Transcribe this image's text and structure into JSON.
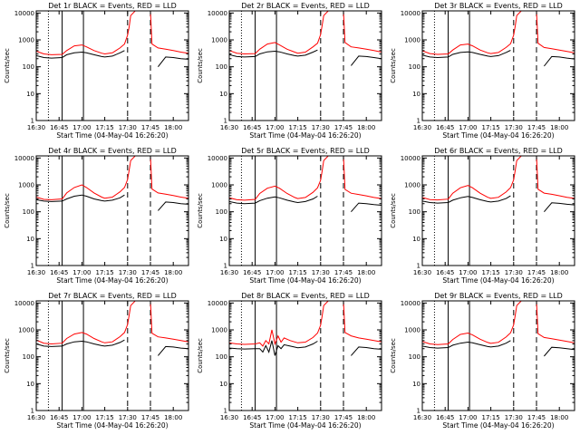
{
  "shared": {
    "x_tick_labels": [
      "16:30",
      "16:45",
      "17:00",
      "17:15",
      "17:30",
      "17:45",
      "18:00"
    ],
    "x_tick_minutes": [
      0,
      15,
      30,
      45,
      60,
      75,
      90
    ],
    "xlim_minutes": [
      0,
      100
    ],
    "xlabel": "Start Time (04-May-04 16:26:20)",
    "ylabel": "Counts/sec",
    "y_tick_labels": [
      "1",
      "10",
      "100",
      "1000",
      "10000"
    ],
    "ylim": [
      1,
      12000
    ],
    "y_scale": "log",
    "colors": {
      "events": "#000000",
      "lld": "#ff0000",
      "axes": "#000000"
    },
    "vertical_markers": [
      {
        "minute": 8,
        "style": "dotted"
      },
      {
        "minute": 17,
        "style": "solid"
      },
      {
        "minute": 31,
        "style": "solid"
      },
      {
        "minute": 60,
        "style": "dashed"
      },
      {
        "minute": 75,
        "style": "dashed"
      }
    ]
  },
  "chart_data": [
    {
      "type": "line",
      "title": "Det 1r BLACK = Events, RED = LLD",
      "y_scale": "log",
      "x_minutes": [
        0,
        5,
        10,
        17,
        20,
        25,
        30,
        33,
        38,
        43,
        45,
        50,
        55,
        58,
        60,
        61,
        62,
        65,
        70,
        75,
        76,
        80,
        85,
        90,
        95,
        100
      ],
      "series": [
        {
          "name": "LLD",
          "values": [
            380,
            300,
            280,
            290,
            400,
            600,
            650,
            550,
            400,
            320,
            300,
            330,
            500,
            700,
            1500,
            3000,
            8000,
            12000,
            12000,
            12000,
            700,
            500,
            450,
            400,
            350,
            320
          ]
        },
        {
          "name": "Events",
          "values": [
            260,
            220,
            210,
            220,
            280,
            330,
            350,
            330,
            280,
            240,
            230,
            250,
            330,
            400,
            null,
            null,
            null,
            null,
            null,
            null,
            null,
            100,
            230,
            220,
            200,
            190
          ]
        }
      ]
    },
    {
      "type": "line",
      "title": "Det 2r BLACK = Events, RED = LLD",
      "y_scale": "log",
      "x_minutes": [
        0,
        5,
        10,
        17,
        20,
        25,
        30,
        33,
        38,
        43,
        45,
        50,
        55,
        58,
        60,
        61,
        62,
        65,
        70,
        75,
        76,
        80,
        85,
        90,
        95,
        100
      ],
      "series": [
        {
          "name": "LLD",
          "values": [
            400,
            320,
            300,
            310,
            450,
            700,
            800,
            650,
            450,
            350,
            320,
            350,
            550,
            750,
            1600,
            3500,
            8000,
            12000,
            12000,
            12000,
            800,
            550,
            500,
            450,
            400,
            350
          ]
        },
        {
          "name": "Events",
          "values": [
            280,
            240,
            230,
            240,
            300,
            360,
            380,
            360,
            300,
            260,
            250,
            270,
            350,
            420,
            null,
            null,
            null,
            null,
            null,
            null,
            null,
            110,
            250,
            240,
            220,
            200
          ]
        }
      ]
    },
    {
      "type": "line",
      "title": "Det 3r BLACK = Events, RED = LLD",
      "y_scale": "log",
      "x_minutes": [
        0,
        5,
        10,
        17,
        20,
        25,
        30,
        33,
        38,
        43,
        45,
        50,
        55,
        58,
        60,
        61,
        62,
        65,
        70,
        75,
        76,
        80,
        85,
        90,
        95,
        100
      ],
      "series": [
        {
          "name": "LLD",
          "values": [
            390,
            310,
            290,
            300,
            420,
            650,
            700,
            600,
            420,
            330,
            310,
            340,
            520,
            720,
            1500,
            3200,
            8000,
            12000,
            12000,
            12000,
            750,
            520,
            470,
            420,
            370,
            330
          ]
        },
        {
          "name": "Events",
          "values": [
            270,
            230,
            220,
            230,
            290,
            340,
            360,
            340,
            290,
            250,
            240,
            260,
            340,
            410,
            null,
            null,
            null,
            null,
            null,
            null,
            null,
            105,
            240,
            230,
            210,
            195
          ]
        }
      ]
    },
    {
      "type": "line",
      "title": "Det 4r BLACK = Events, RED = LLD",
      "y_scale": "log",
      "x_minutes": [
        0,
        5,
        10,
        17,
        20,
        25,
        30,
        33,
        38,
        43,
        45,
        50,
        55,
        58,
        60,
        61,
        62,
        65,
        70,
        75,
        76,
        80,
        85,
        90,
        95,
        100
      ],
      "series": [
        {
          "name": "LLD",
          "values": [
            350,
            290,
            280,
            300,
            500,
            800,
            1000,
            800,
            500,
            350,
            320,
            350,
            550,
            800,
            1600,
            3500,
            8000,
            12000,
            12000,
            12000,
            700,
            500,
            450,
            400,
            350,
            320
          ]
        },
        {
          "name": "Events",
          "values": [
            280,
            250,
            240,
            250,
            300,
            380,
            420,
            380,
            300,
            260,
            250,
            270,
            330,
            420,
            null,
            null,
            null,
            null,
            null,
            null,
            null,
            110,
            230,
            220,
            200,
            190
          ]
        }
      ]
    },
    {
      "type": "line",
      "title": "Det 5r BLACK = Events, RED = LLD",
      "y_scale": "log",
      "x_minutes": [
        0,
        5,
        10,
        17,
        20,
        25,
        30,
        33,
        38,
        43,
        45,
        50,
        55,
        58,
        60,
        61,
        62,
        65,
        70,
        75,
        76,
        80,
        85,
        90,
        95,
        100
      ],
      "series": [
        {
          "name": "LLD",
          "values": [
            330,
            280,
            270,
            290,
            480,
            750,
            900,
            750,
            480,
            340,
            310,
            340,
            530,
            780,
            1500,
            3300,
            8000,
            12000,
            12000,
            12000,
            680,
            490,
            440,
            390,
            340,
            310
          ]
        },
        {
          "name": "Events",
          "values": [
            240,
            210,
            200,
            210,
            260,
            320,
            360,
            330,
            270,
            230,
            220,
            240,
            300,
            380,
            null,
            null,
            null,
            null,
            null,
            null,
            null,
            100,
            210,
            200,
            185,
            175
          ]
        }
      ]
    },
    {
      "type": "line",
      "title": "Det 6r BLACK = Events, RED = LLD",
      "y_scale": "log",
      "x_minutes": [
        0,
        5,
        10,
        17,
        20,
        25,
        30,
        33,
        38,
        43,
        45,
        50,
        55,
        58,
        60,
        61,
        62,
        65,
        70,
        75,
        76,
        80,
        85,
        90,
        95,
        100
      ],
      "series": [
        {
          "name": "LLD",
          "values": [
            340,
            285,
            275,
            295,
            490,
            780,
            950,
            780,
            490,
            345,
            315,
            345,
            540,
            790,
            1550,
            3400,
            8000,
            12000,
            12000,
            12000,
            690,
            495,
            445,
            395,
            345,
            315
          ]
        },
        {
          "name": "Events",
          "values": [
            250,
            220,
            210,
            220,
            270,
            330,
            370,
            340,
            280,
            240,
            230,
            250,
            310,
            390,
            null,
            null,
            null,
            null,
            null,
            null,
            null,
            100,
            215,
            205,
            190,
            180
          ]
        }
      ]
    },
    {
      "type": "line",
      "title": "Det 7r BLACK = Events, RED = LLD",
      "y_scale": "log",
      "x_minutes": [
        0,
        5,
        10,
        17,
        20,
        25,
        30,
        33,
        38,
        43,
        45,
        50,
        55,
        58,
        60,
        61,
        62,
        65,
        70,
        75,
        76,
        80,
        85,
        90,
        95,
        100
      ],
      "series": [
        {
          "name": "LLD",
          "values": [
            420,
            320,
            300,
            320,
            480,
            700,
            800,
            700,
            480,
            360,
            330,
            360,
            560,
            800,
            1600,
            3500,
            8000,
            12000,
            12000,
            12000,
            750,
            550,
            500,
            450,
            400,
            360
          ]
        },
        {
          "name": "Events",
          "values": [
            300,
            250,
            240,
            250,
            300,
            360,
            380,
            360,
            300,
            260,
            250,
            270,
            340,
            420,
            null,
            null,
            null,
            null,
            null,
            null,
            null,
            110,
            240,
            230,
            210,
            200
          ]
        }
      ]
    },
    {
      "type": "line",
      "title": "Det 8r BLACK = Events, RED = LLD",
      "y_scale": "log",
      "x_minutes": [
        0,
        5,
        10,
        17,
        20,
        22,
        24,
        26,
        28,
        30,
        32,
        34,
        36,
        40,
        45,
        50,
        55,
        58,
        60,
        61,
        62,
        65,
        70,
        75,
        76,
        80,
        85,
        90,
        95,
        100
      ],
      "series": [
        {
          "name": "LLD",
          "values": [
            330,
            300,
            290,
            300,
            330,
            250,
            400,
            300,
            1000,
            300,
            600,
            350,
            500,
            400,
            330,
            350,
            520,
            760,
            1500,
            3300,
            8000,
            12000,
            12000,
            12000,
            800,
            600,
            500,
            450,
            400,
            360
          ]
        },
        {
          "name": "Events",
          "values": [
            210,
            200,
            195,
            200,
            200,
            150,
            260,
            150,
            400,
            110,
            260,
            200,
            280,
            250,
            215,
            230,
            300,
            380,
            null,
            null,
            null,
            null,
            null,
            null,
            null,
            110,
            230,
            220,
            200,
            190
          ]
        }
      ]
    },
    {
      "type": "line",
      "title": "Det 9r BLACK = Events, RED = LLD",
      "y_scale": "log",
      "x_minutes": [
        0,
        5,
        10,
        17,
        20,
        25,
        30,
        33,
        38,
        43,
        45,
        50,
        55,
        58,
        60,
        61,
        62,
        65,
        70,
        75,
        76,
        80,
        85,
        90,
        95,
        100
      ],
      "series": [
        {
          "name": "LLD",
          "values": [
            370,
            300,
            285,
            300,
            440,
            680,
            760,
            650,
            450,
            340,
            315,
            345,
            540,
            780,
            1550,
            3400,
            8000,
            12000,
            12000,
            12000,
            720,
            520,
            470,
            420,
            370,
            330
          ]
        },
        {
          "name": "Events",
          "values": [
            250,
            220,
            210,
            220,
            270,
            320,
            350,
            330,
            280,
            240,
            230,
            250,
            320,
            400,
            null,
            null,
            null,
            null,
            null,
            null,
            null,
            105,
            225,
            215,
            200,
            185
          ]
        }
      ]
    }
  ]
}
